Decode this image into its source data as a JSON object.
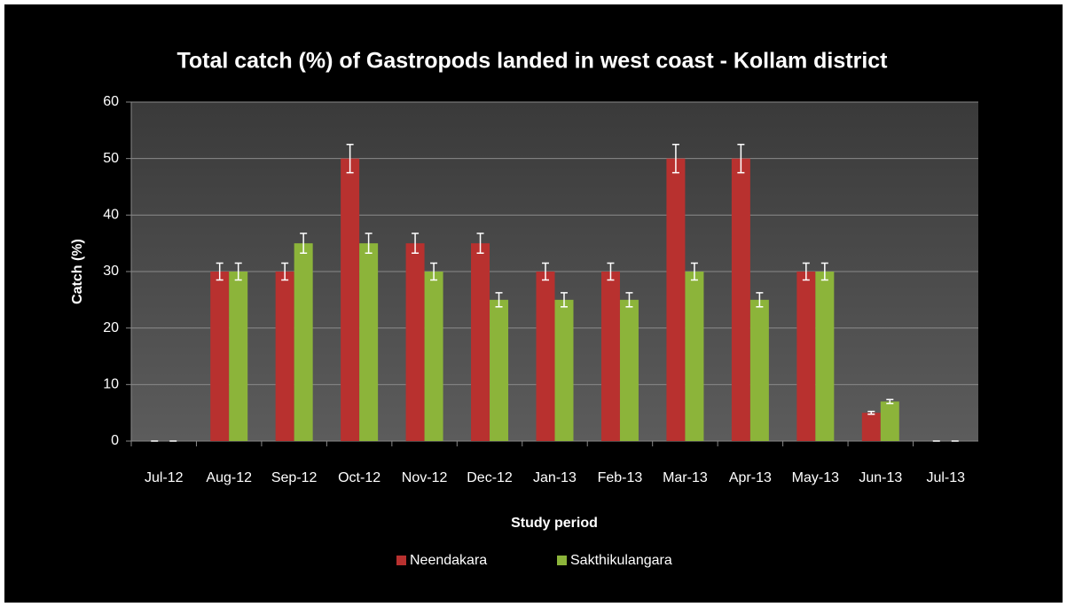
{
  "chart_data": {
    "type": "bar",
    "title": "Total catch (%) of Gastropods landed in west coast - Kollam district",
    "x_label": "Study period",
    "y_label": "Catch (%)",
    "categories": [
      "Jul-12",
      "Aug-12",
      "Sep-12",
      "Oct-12",
      "Nov-12",
      "Dec-12",
      "Jan-13",
      "Feb-13",
      "Mar-13",
      "Apr-13",
      "May-13",
      "Jun-13",
      "Jul-13"
    ],
    "series": [
      {
        "name": "Neendakara",
        "color": "#b8312f",
        "values": [
          0,
          30,
          30,
          50,
          35,
          35,
          30,
          30,
          50,
          50,
          30,
          5,
          0
        ],
        "errors": [
          0,
          1.5,
          1.5,
          2.5,
          1.75,
          1.75,
          1.5,
          1.5,
          2.5,
          2.5,
          1.5,
          0.25,
          0
        ]
      },
      {
        "name": "Sakthikulangara",
        "color": "#8cb43a",
        "values": [
          0,
          30,
          35,
          35,
          30,
          25,
          25,
          25,
          30,
          25,
          30,
          7,
          0
        ],
        "errors": [
          0,
          1.5,
          1.75,
          1.75,
          1.5,
          1.25,
          1.25,
          1.25,
          1.5,
          1.25,
          1.5,
          0.35,
          0
        ]
      }
    ],
    "ylim": [
      0,
      60
    ],
    "yticks": [
      0,
      10,
      20,
      30,
      40,
      50,
      60
    ],
    "grid": true,
    "legend": "bottom"
  }
}
